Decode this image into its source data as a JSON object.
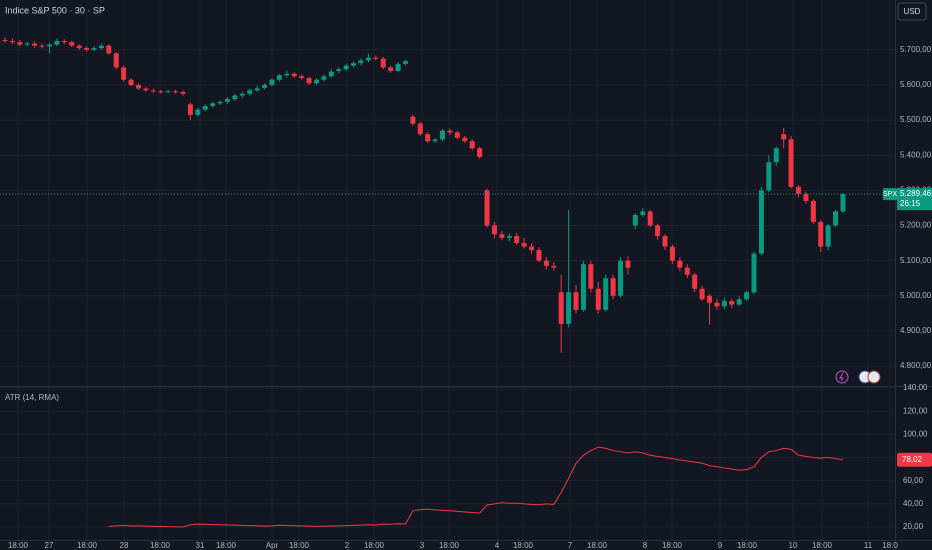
{
  "chart_data": [
    {
      "type": "candlestick",
      "title": "Indice S&P 500 · 30 · SP",
      "currency": "USD",
      "up_color": "#089981",
      "down_color": "#f23645",
      "ylim": [
        4746,
        5842
      ],
      "yticks": [
        {
          "value": 4800,
          "label": "4.800,00"
        },
        {
          "value": 4900,
          "label": "4.900,00"
        },
        {
          "value": 5000,
          "label": "5.000,00"
        },
        {
          "value": 5100,
          "label": "5.100,00"
        },
        {
          "value": 5200,
          "label": "5.200,00"
        },
        {
          "value": 5300,
          "label": "5.300,00"
        },
        {
          "value": 5400,
          "label": "5.400,00"
        },
        {
          "value": 5500,
          "label": "5.500,00"
        },
        {
          "value": 5600,
          "label": "5.600,00"
        },
        {
          "value": 5700,
          "label": "5.700,00"
        }
      ],
      "grid": true,
      "x_axis_labels": [
        "18:00",
        "27",
        "18:00",
        "28",
        "18:00",
        "31",
        "18:00",
        "Apr",
        "18:00",
        "2",
        "18:00",
        "3",
        "18:00",
        "4",
        "18:00",
        "7",
        "18:00",
        "8",
        "18:00",
        "9",
        "18:00",
        "10",
        "18:00",
        "11",
        "18:0"
      ],
      "price_tag": {
        "symbol": "SPX",
        "price": {
          "value": 5289.46,
          "label": "5.289,46"
        },
        "countdown": "26:15"
      },
      "open": [
        5728,
        5725,
        5722,
        5715,
        5718,
        5712,
        5710,
        5715,
        5725,
        5722,
        5712,
        5705,
        5700,
        5705,
        5712,
        5690,
        5650,
        5615,
        5600,
        5590,
        5585,
        5582,
        5580,
        5582,
        5580,
        5545,
        5515,
        5530,
        5540,
        5548,
        5552,
        5560,
        5570,
        5575,
        5585,
        5592,
        5600,
        5615,
        5628,
        5632,
        5625,
        5620,
        5605,
        5615,
        5625,
        5640,
        5645,
        5655,
        5662,
        5670,
        5678,
        5675,
        5650,
        5640,
        5660,
        5510,
        5490,
        5460,
        5440,
        5445,
        5470,
        5465,
        5450,
        5440,
        5420,
        5300,
        5200,
        5175,
        5165,
        5170,
        5150,
        5140,
        5130,
        5100,
        5085,
        5010,
        4920,
        5010,
        4960,
        5090,
        5020,
        4960,
        5050,
        5000,
        5100,
        5200,
        5230,
        5240,
        5200,
        5170,
        5140,
        5100,
        5080,
        5060,
        5020,
        5000,
        4980,
        4970,
        4985,
        4975,
        4990,
        5010,
        5120,
        5300,
        5380,
        5460,
        5445,
        5310,
        5290,
        5270,
        5210,
        5140,
        5200,
        5240
      ],
      "high": [
        5735,
        5732,
        5728,
        5724,
        5724,
        5718,
        5720,
        5732,
        5730,
        5726,
        5716,
        5710,
        5710,
        5718,
        5716,
        5694,
        5655,
        5620,
        5605,
        5594,
        5590,
        5586,
        5586,
        5586,
        5584,
        5550,
        5535,
        5545,
        5552,
        5556,
        5566,
        5575,
        5580,
        5590,
        5598,
        5605,
        5620,
        5632,
        5640,
        5636,
        5630,
        5624,
        5620,
        5630,
        5645,
        5650,
        5660,
        5668,
        5676,
        5690,
        5684,
        5680,
        5655,
        5665,
        5672,
        5515,
        5495,
        5465,
        5450,
        5475,
        5476,
        5470,
        5455,
        5445,
        5425,
        5305,
        5210,
        5185,
        5178,
        5180,
        5165,
        5150,
        5138,
        5110,
        5095,
        5060,
        5244,
        5030,
        5100,
        5100,
        5040,
        5060,
        5060,
        5110,
        5112,
        5235,
        5250,
        5245,
        5205,
        5175,
        5145,
        5110,
        5090,
        5065,
        5028,
        5005,
        4990,
        4995,
        4992,
        4998,
        5015,
        5125,
        5310,
        5400,
        5425,
        5478,
        5455,
        5315,
        5296,
        5275,
        5215,
        5205,
        5245,
        5292
      ],
      "low": [
        5720,
        5716,
        5710,
        5710,
        5706,
        5704,
        5690,
        5710,
        5716,
        5708,
        5700,
        5695,
        5696,
        5700,
        5686,
        5645,
        5610,
        5596,
        5586,
        5580,
        5578,
        5576,
        5576,
        5576,
        5570,
        5500,
        5510,
        5525,
        5535,
        5543,
        5547,
        5555,
        5564,
        5570,
        5580,
        5588,
        5596,
        5610,
        5622,
        5620,
        5615,
        5600,
        5600,
        5610,
        5620,
        5634,
        5640,
        5650,
        5656,
        5665,
        5670,
        5645,
        5635,
        5636,
        5656,
        5485,
        5455,
        5435,
        5435,
        5440,
        5458,
        5445,
        5435,
        5415,
        5390,
        5195,
        5165,
        5158,
        5155,
        5145,
        5135,
        5120,
        5095,
        5075,
        5072,
        4838,
        4910,
        4950,
        4955,
        5010,
        4950,
        4955,
        4990,
        4995,
        5060,
        5190,
        5225,
        5195,
        5160,
        5130,
        5090,
        5070,
        5050,
        5010,
        4985,
        4918,
        4960,
        4962,
        4965,
        4970,
        4985,
        5005,
        5115,
        5295,
        5370,
        5420,
        5305,
        5280,
        5262,
        5205,
        5125,
        5130,
        5195,
        5236
      ],
      "close": [
        5725,
        5722,
        5715,
        5718,
        5712,
        5710,
        5715,
        5725,
        5722,
        5712,
        5705,
        5700,
        5705,
        5712,
        5690,
        5650,
        5615,
        5600,
        5590,
        5585,
        5582,
        5580,
        5582,
        5580,
        5575,
        5515,
        5530,
        5540,
        5548,
        5552,
        5560,
        5570,
        5575,
        5585,
        5590,
        5600,
        5615,
        5628,
        5632,
        5625,
        5620,
        5605,
        5615,
        5625,
        5638,
        5645,
        5655,
        5662,
        5670,
        5678,
        5675,
        5650,
        5640,
        5660,
        5668,
        5490,
        5460,
        5440,
        5445,
        5470,
        5465,
        5450,
        5440,
        5420,
        5395,
        5200,
        5175,
        5165,
        5170,
        5150,
        5140,
        5130,
        5100,
        5085,
        5080,
        4920,
        5010,
        4960,
        5090,
        5020,
        4960,
        5050,
        5000,
        5100,
        5080,
        5230,
        5240,
        5200,
        5170,
        5140,
        5100,
        5080,
        5060,
        5020,
        4990,
        4980,
        4970,
        4985,
        4975,
        4990,
        5010,
        5120,
        5300,
        5380,
        5420,
        5445,
        5310,
        5290,
        5270,
        5210,
        5140,
        5200,
        5240,
        5289.46
      ]
    },
    {
      "type": "line",
      "title": "ATR (14, RMA)",
      "color": "#f23645",
      "ylim": [
        8.8,
        140
      ],
      "yticks": [
        {
          "value": 20,
          "label": "20,00"
        },
        {
          "value": 40,
          "label": "40,00"
        },
        {
          "value": 60,
          "label": "60,00"
        },
        {
          "value": 80,
          "label": "80,00"
        },
        {
          "value": 100,
          "label": "100,00"
        },
        {
          "value": 120,
          "label": "120,00"
        },
        {
          "value": 140,
          "label": "140,00"
        }
      ],
      "grid": true,
      "last_value": {
        "value": 78.02,
        "label": "78,02"
      },
      "values": [
        null,
        null,
        null,
        null,
        null,
        null,
        null,
        null,
        null,
        null,
        null,
        null,
        null,
        null,
        20.5,
        21,
        21.3,
        21,
        21,
        20.8,
        20.6,
        20.5,
        20.3,
        20.1,
        20,
        22,
        22.5,
        22.3,
        22.1,
        22,
        21.8,
        21.6,
        21.4,
        21.2,
        21,
        20.8,
        21,
        21.5,
        21.3,
        21.1,
        21,
        20.8,
        20.6,
        20.7,
        20.9,
        21,
        21.2,
        21.4,
        21.6,
        22,
        21.8,
        22.5,
        22.4,
        22.8,
        22.6,
        34,
        35,
        35.5,
        34.8,
        34.5,
        34,
        33.5,
        33,
        32.5,
        32,
        39,
        40,
        41,
        40.5,
        40.5,
        40,
        39.5,
        39.2,
        40,
        39.5,
        50,
        62,
        75,
        82,
        86,
        89,
        88,
        86,
        85,
        84,
        85,
        84,
        82,
        81,
        80,
        79,
        78,
        77,
        76,
        75,
        73,
        72,
        71,
        70,
        69,
        69.5,
        72,
        80,
        85,
        86,
        88,
        87,
        82,
        81,
        80,
        79.5,
        80,
        79,
        78.02
      ]
    }
  ]
}
